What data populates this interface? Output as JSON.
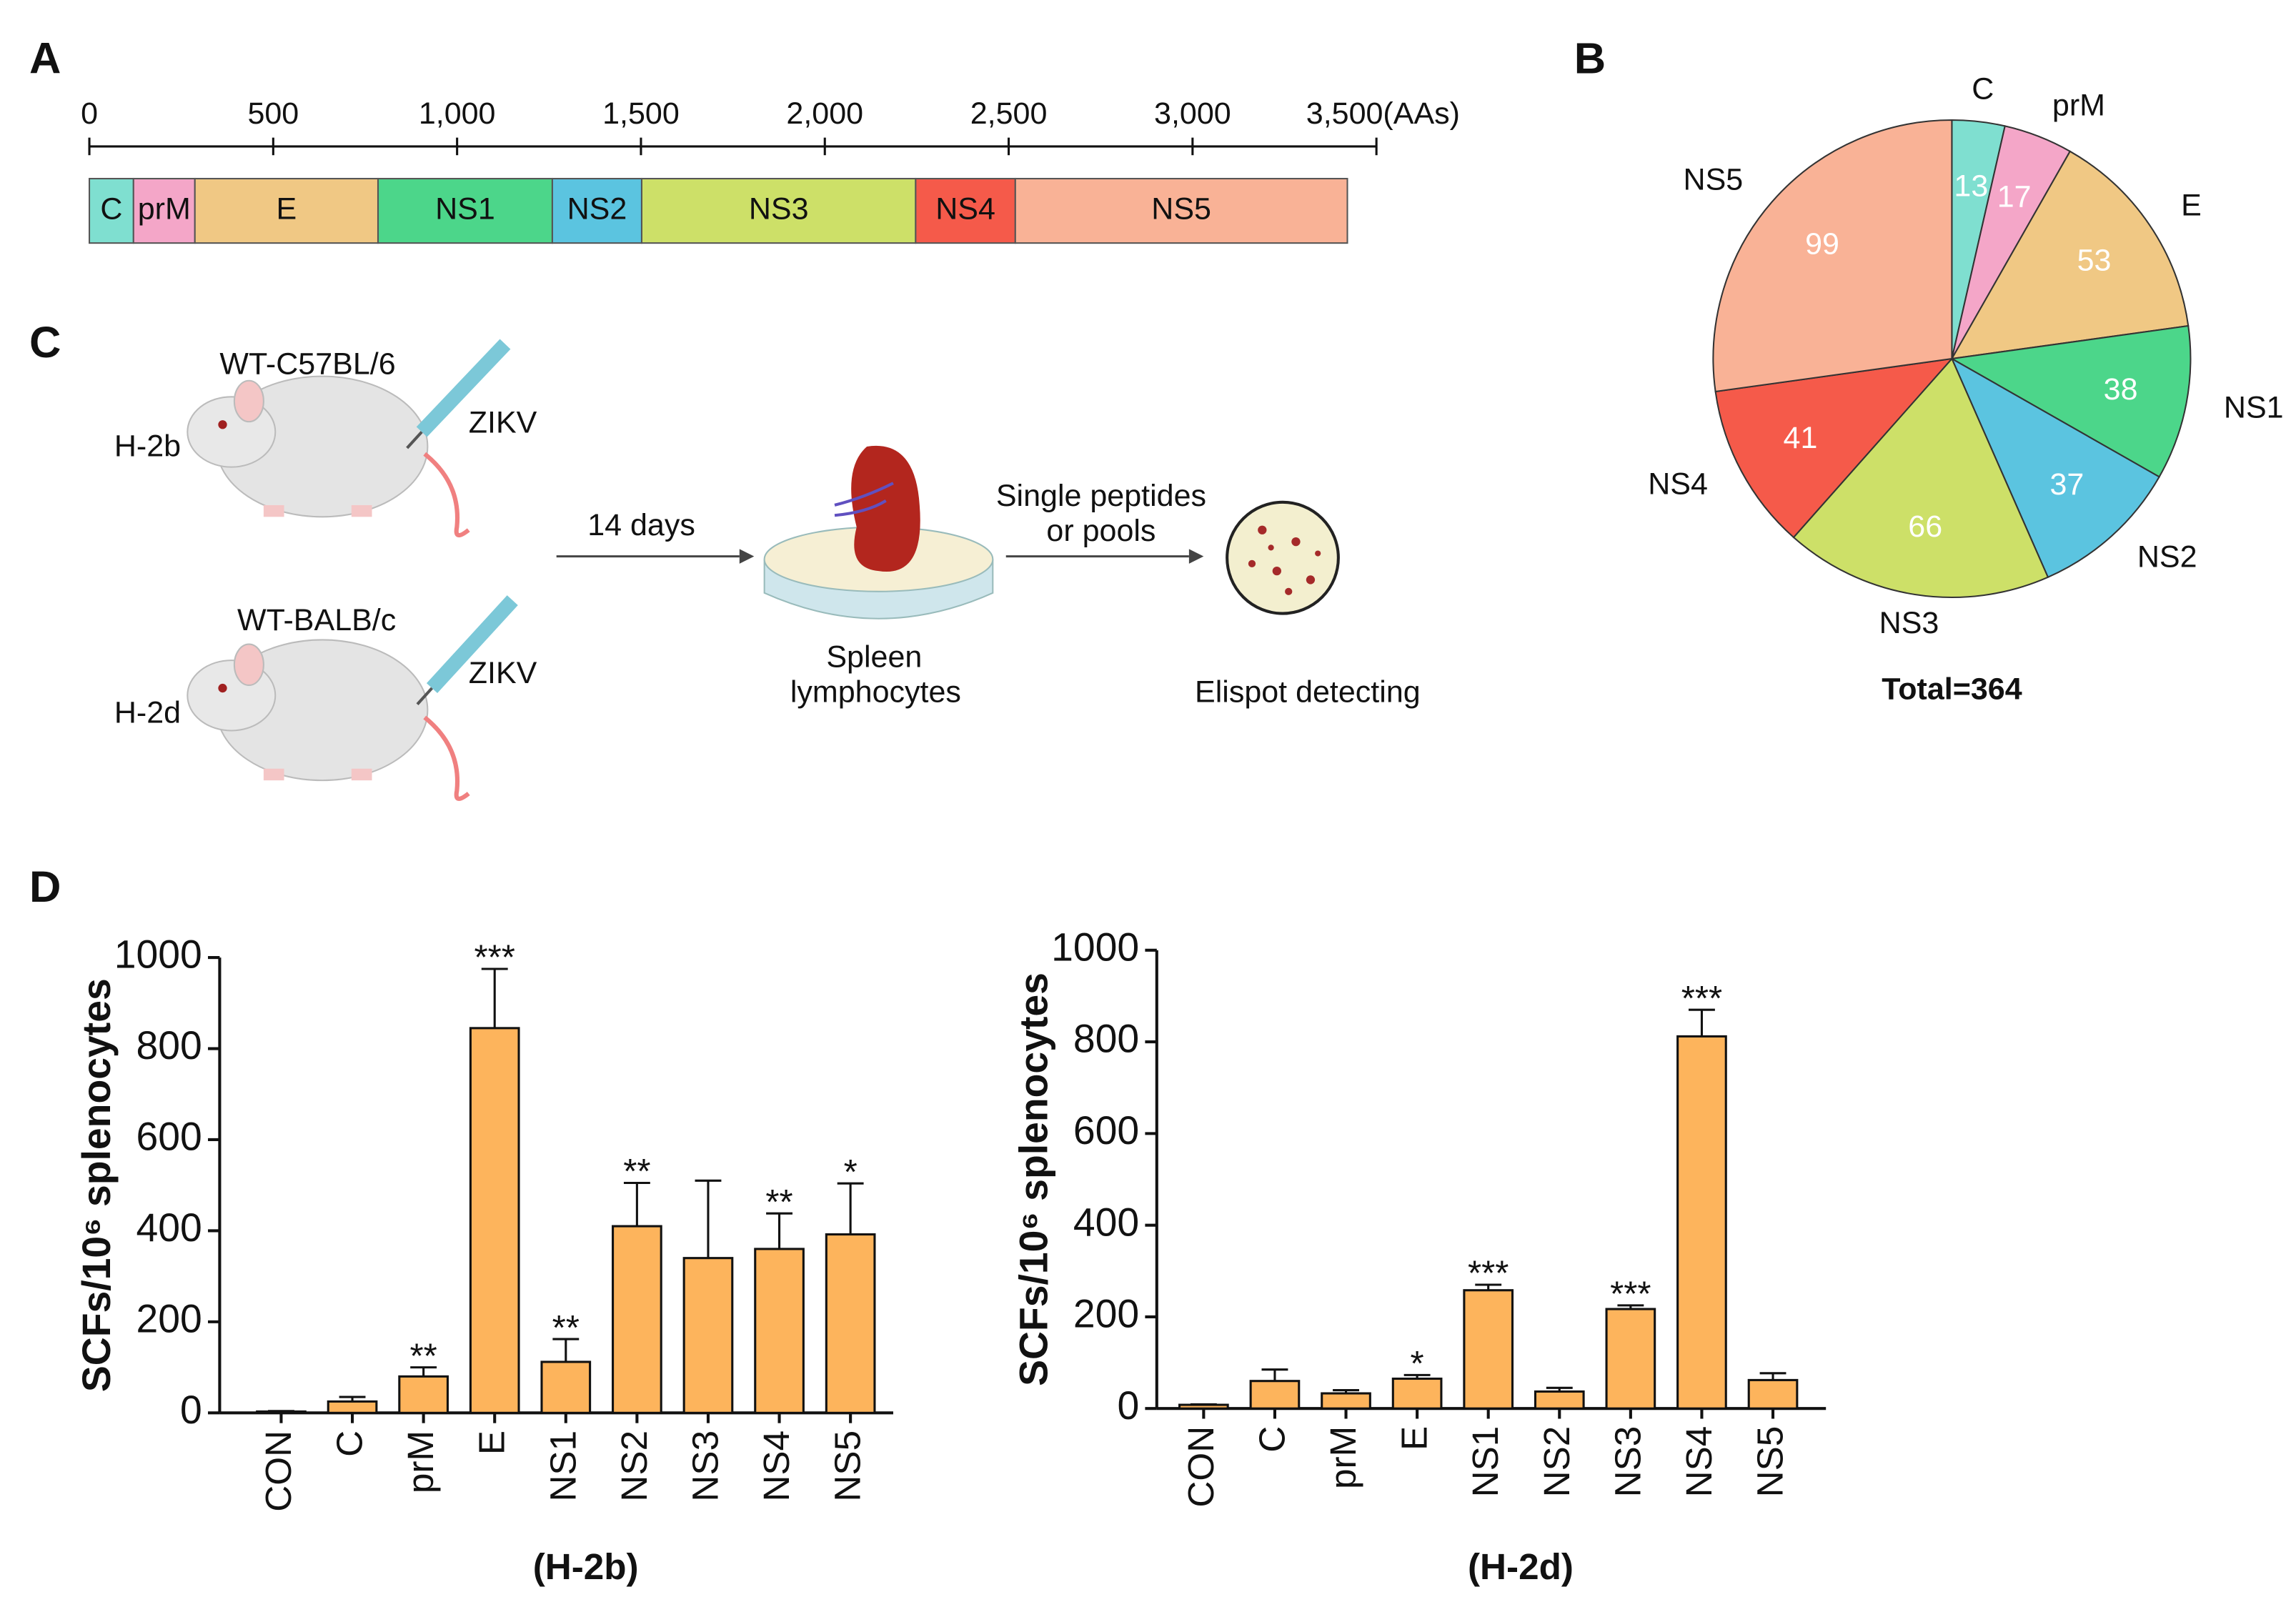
{
  "panel_labels": [
    "A",
    "B",
    "C",
    "D"
  ],
  "genome_map": {
    "xlim": [
      0,
      3500
    ],
    "xticks": [
      0,
      500,
      {
        "value": 1000,
        "label": "1,000"
      },
      {
        "value": 1500,
        "label": "1,500"
      },
      {
        "value": 2000,
        "label": "2,000"
      },
      {
        "value": 2500,
        "label": "2,500"
      },
      {
        "value": 3000,
        "label": "3,000"
      },
      {
        "value": 3500,
        "label": "3,500(AAs)"
      }
    ],
    "segments": [
      {
        "name": "C",
        "start": 0,
        "end": 120,
        "color": "#7fdfd0"
      },
      {
        "name": "prM",
        "start": 120,
        "end": 287,
        "color": "#f4a6c8"
      },
      {
        "name": "E",
        "start": 287,
        "end": 785,
        "color": "#f0c884"
      },
      {
        "name": "NS1",
        "start": 785,
        "end": 1259,
        "color": "#4cd68a"
      },
      {
        "name": "NS2",
        "start": 1259,
        "end": 1502,
        "color": "#5bc4e0"
      },
      {
        "name": "NS3",
        "start": 1502,
        "end": 2247,
        "color": "#cde068"
      },
      {
        "name": "NS4",
        "start": 2247,
        "end": 2518,
        "color": "#f55a4a"
      },
      {
        "name": "NS5",
        "start": 2518,
        "end": 3421,
        "color": "#f9b296"
      }
    ]
  },
  "workflow": {
    "mouse1": {
      "strain": "WT-C57BL/6",
      "haplotype": "H-2b",
      "virus": "ZIKV"
    },
    "mouse2": {
      "strain": "WT-BALB/c",
      "haplotype": "H-2d",
      "virus": "ZIKV"
    },
    "step1": "14 days",
    "dish": [
      "Spleen",
      "lymphocytes"
    ],
    "step2": [
      "Single peptides",
      "or pools"
    ],
    "readout": "Elispot detecting"
  },
  "chart_data": [
    {
      "type": "pie",
      "categories": [
        "C",
        "prM",
        "E",
        "NS1",
        "NS2",
        "NS3",
        "NS4",
        "NS5"
      ],
      "values": [
        13,
        17,
        53,
        38,
        37,
        66,
        41,
        99
      ],
      "colors": [
        "#7fdfd0",
        "#f4a6c8",
        "#f0c884",
        "#4cd68a",
        "#5bc4e0",
        "#cde068",
        "#f55a4a",
        "#f9b296"
      ],
      "total_label": "Total=364"
    },
    {
      "type": "bar",
      "categories": [
        "CON",
        "C",
        "prM",
        "E",
        "NS1",
        "NS2",
        "NS3",
        "NS4",
        "NS5"
      ],
      "values": [
        3,
        25,
        80,
        845,
        112,
        410,
        340,
        360,
        392
      ],
      "errors": [
        1,
        10,
        20,
        130,
        50,
        95,
        170,
        78,
        112
      ],
      "significance": [
        null,
        null,
        "**",
        "***",
        "**",
        "**",
        null,
        "**",
        "*"
      ],
      "color": "#fdb45c",
      "ylim": [
        0,
        1000
      ],
      "yticks": [
        0,
        200,
        400,
        600,
        800,
        1000
      ],
      "ylabel": "SCFs/10⁶ splenocytes",
      "xlabel": "(H-2b)"
    },
    {
      "type": "bar",
      "categories": [
        "CON",
        "C",
        "prM",
        "E",
        "NS1",
        "NS2",
        "NS3",
        "NS4",
        "NS5"
      ],
      "values": [
        8,
        60,
        33,
        65,
        258,
        37,
        217,
        812,
        62
      ],
      "errors": [
        1,
        25,
        7,
        8,
        12,
        8,
        8,
        58,
        15
      ],
      "significance": [
        null,
        null,
        null,
        "*",
        "***",
        null,
        "***",
        "***",
        null
      ],
      "color": "#fdb45c",
      "ylim": [
        0,
        1000
      ],
      "yticks": [
        0,
        200,
        400,
        600,
        800,
        1000
      ],
      "ylabel": "SCFs/10⁶ splenocytes",
      "xlabel": "(H-2d)"
    }
  ]
}
